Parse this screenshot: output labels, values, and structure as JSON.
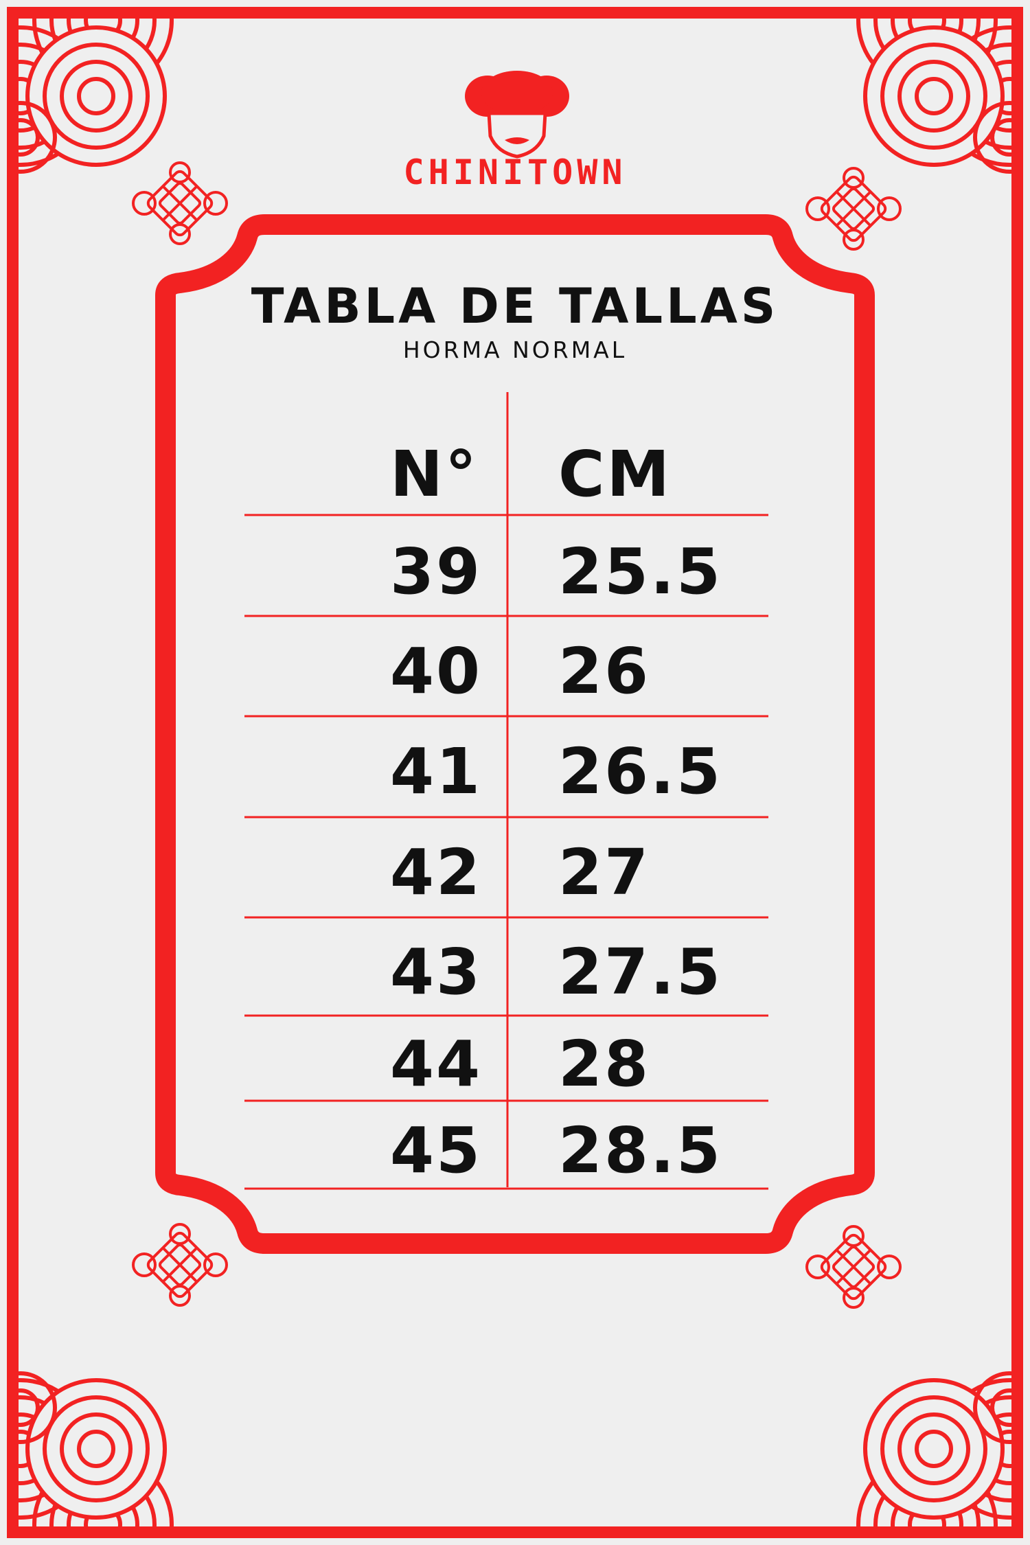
{
  "brand": {
    "name": "CHINITOWN",
    "logo_icon": "girl-face-logo"
  },
  "colors": {
    "accent": "#f22222",
    "background": "#efefef",
    "text": "#111111"
  },
  "title": "TABLA DE TALLAS",
  "subtitle": "HORMA NORMAL",
  "table": {
    "headers": [
      "N°",
      "CM"
    ],
    "rows": [
      [
        "39",
        "25.5"
      ],
      [
        "40",
        "26"
      ],
      [
        "41",
        "26.5"
      ],
      [
        "42",
        "27"
      ],
      [
        "43",
        "27.5"
      ],
      [
        "44",
        "28"
      ],
      [
        "45",
        "28.5"
      ]
    ]
  }
}
